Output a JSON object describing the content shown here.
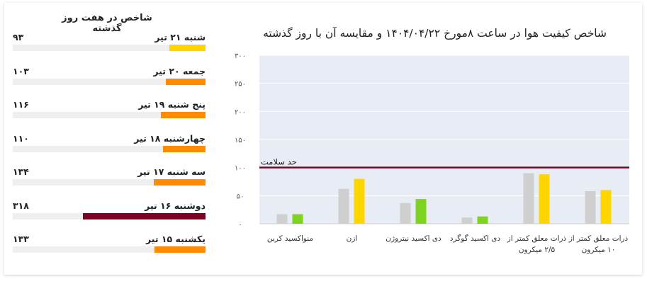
{
  "weekly": {
    "title": "شاخص در هفت روز گذشته",
    "max": 500,
    "days": [
      {
        "label": "شنبه ۲۱ تیر",
        "value_text": "۹۳",
        "value": 93,
        "color": "#FFD500"
      },
      {
        "label": "جمعه ۲۰ تیر",
        "value_text": "۱۰۳",
        "value": 103,
        "color": "#FF8C00"
      },
      {
        "label": "پنج شنبه ۱۹ تیر",
        "value_text": "۱۱۶",
        "value": 116,
        "color": "#FF8C00"
      },
      {
        "label": "چهارشنبه ۱۸ تیر",
        "value_text": "۱۱۰",
        "value": 110,
        "color": "#FF8C00"
      },
      {
        "label": "سه شنبه ۱۷ تیر",
        "value_text": "۱۳۴",
        "value": 134,
        "color": "#FF8C00"
      },
      {
        "label": "دوشنبه ۱۶ تیر",
        "value_text": "۳۱۸",
        "value": 318,
        "color": "#7E0023"
      },
      {
        "label": "یکشنبه ۱۵ تیر",
        "value_text": "۱۳۳",
        "value": 133,
        "color": "#FF8C00"
      }
    ]
  },
  "chart_title": "شاخص کیفیت هوا در ساعت ۸مورخ ۱۴۰۴/۰۴/۲۲ و مقایسه آن با روز گذشته",
  "chart_data": {
    "type": "bar",
    "title": "شاخص کیفیت هوا در ساعت ۸مورخ ۱۴۰۴/۰۴/۲۲ و مقایسه آن با روز گذشته",
    "ylim": [
      0,
      300
    ],
    "yticks": [
      0,
      50,
      100,
      150,
      200,
      250,
      300
    ],
    "ytick_labels": [
      "۰",
      "۵۰",
      "۱۰۰",
      "۱۵۰",
      "۲۰۰",
      "۲۵۰",
      "۳۰۰"
    ],
    "health_threshold": {
      "label": "حد سلامت",
      "value": 100,
      "color": "#7E0023"
    },
    "categories": [
      {
        "lines": [
          "منواکسید کربن"
        ]
      },
      {
        "lines": [
          "ازن"
        ]
      },
      {
        "lines": [
          "دی اکسید نیتروژن"
        ]
      },
      {
        "lines": [
          "دی اکسید گوگرد"
        ]
      },
      {
        "lines": [
          "ذرات معلق کمتر از",
          "۲/۵ میکرون"
        ]
      },
      {
        "lines": [
          "ذرات معلق کمتر از",
          "۱۰ میکرون"
        ]
      }
    ],
    "previous": {
      "values": [
        17,
        62,
        37,
        11,
        90,
        58
      ],
      "color": "#cfcfcf"
    },
    "current": {
      "values": [
        17,
        80,
        44,
        13,
        88,
        60
      ],
      "colors": [
        "#7ED321",
        "#FFD500",
        "#7ED321",
        "#7ED321",
        "#FFD500",
        "#FFD500"
      ]
    },
    "grid": true,
    "plot_background": "#e8edf5"
  }
}
